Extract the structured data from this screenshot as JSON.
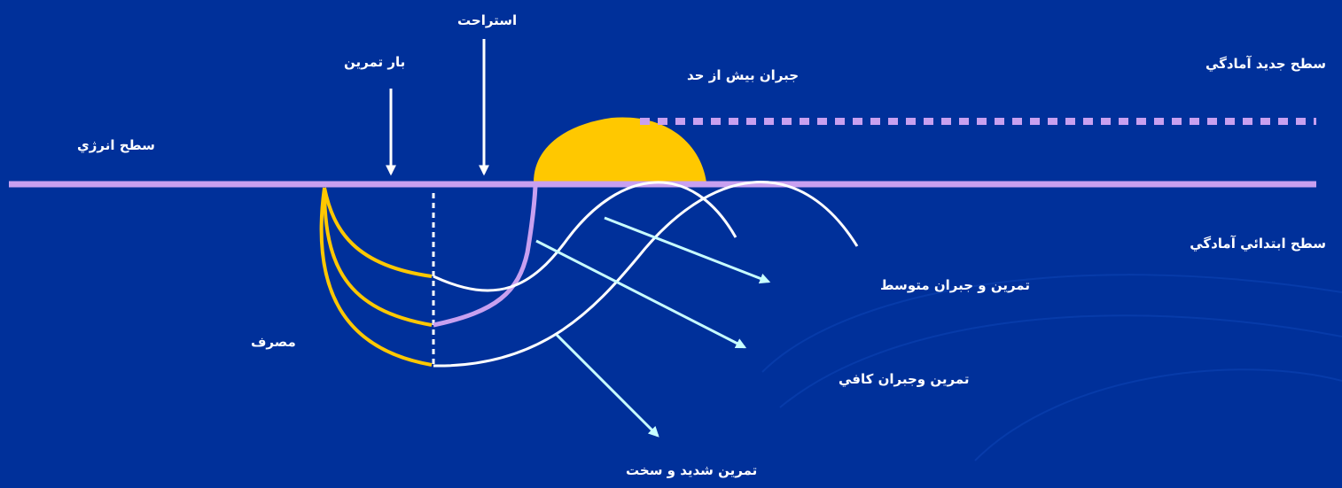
{
  "labels": {
    "new_fitness_level": "سطح جديد آمادگي",
    "over_compensation": "جبران بيش از حد",
    "rest": "استراحت",
    "training_load": "بار تمرين",
    "energy_level": "سطح انرژي",
    "initial_fitness_level": "سطح ابتدائي آمادگي",
    "consumption": "مصرف",
    "moderate": "تمرين و جبران متوسط",
    "sufficient": "تمرين وجبران كافي",
    "intense": "تمرين شديد و سخت"
  },
  "colors": {
    "background": "#00309a",
    "energy_line": "#c8a0f0",
    "consumption_curves": "#ffc800",
    "overcompensation_fill": "#ffc800",
    "recovery_curves": "#ffffff",
    "arrows": "#c8ffff",
    "text": "#ffffff"
  }
}
